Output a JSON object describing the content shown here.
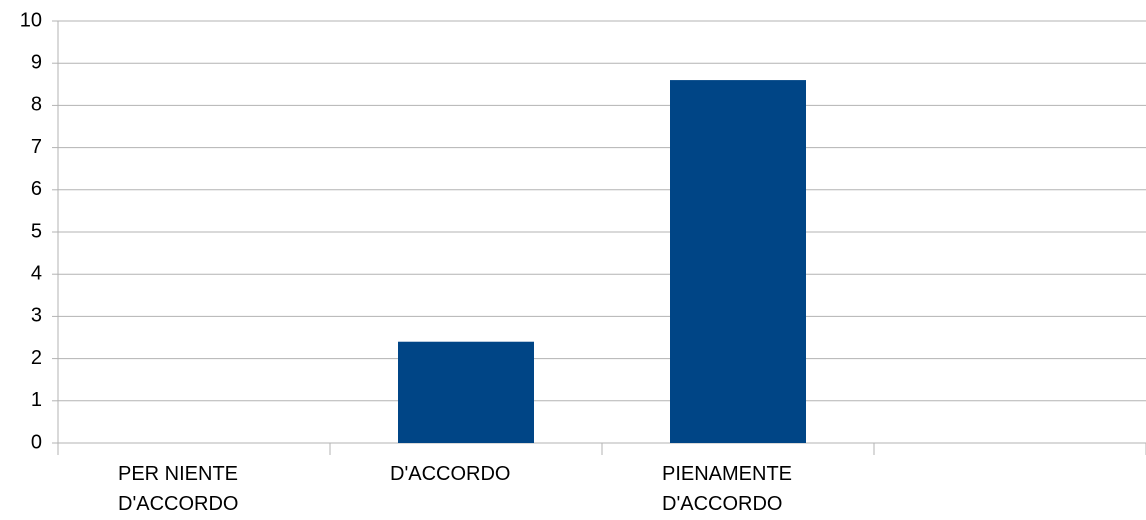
{
  "chart_data": {
    "type": "bar",
    "categories": [
      "PER NIENTE D'ACCORDO",
      "D'ACCORDO",
      "PIENAMENTE D'ACCORDO",
      null
    ],
    "values": [
      0,
      2.4,
      8.6,
      null
    ],
    "color": "#004586",
    "ylim": [
      0,
      10
    ],
    "yticks": [
      0,
      1,
      2,
      3,
      4,
      5,
      6,
      7,
      8,
      9,
      10
    ],
    "grid": true
  }
}
